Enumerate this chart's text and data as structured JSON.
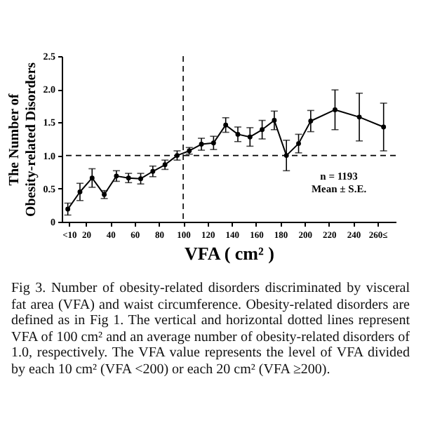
{
  "chart_data": {
    "type": "line",
    "xlabel": "VFA ( cm² )",
    "ylabel": "The Number of\nObesity-related Disorders",
    "x": [
      5,
      15,
      25,
      35,
      45,
      55,
      65,
      75,
      85,
      95,
      105,
      115,
      125,
      135,
      145,
      155,
      165,
      175,
      185,
      195,
      205,
      225,
      245,
      265
    ],
    "series": [
      {
        "color": "#000000",
        "values": [
          0.19,
          0.45,
          0.66,
          0.41,
          0.69,
          0.66,
          0.65,
          0.76,
          0.86,
          1.0,
          1.07,
          1.17,
          1.19,
          1.46,
          1.32,
          1.28,
          1.39,
          1.53,
          1.0,
          1.18,
          1.52,
          1.69,
          1.58,
          1.43
        ],
        "errors": [
          0.09,
          0.13,
          0.14,
          0.06,
          0.08,
          0.07,
          0.08,
          0.08,
          0.07,
          0.07,
          0.05,
          0.09,
          0.1,
          0.11,
          0.11,
          0.14,
          0.14,
          0.14,
          0.23,
          0.14,
          0.16,
          0.3,
          0.36,
          0.36
        ]
      }
    ],
    "xlim": [
      0,
      275
    ],
    "xticks": [
      {
        "value": 6,
        "label": "<10"
      },
      20,
      40,
      60,
      80,
      100,
      120,
      140,
      160,
      180,
      200,
      220,
      240,
      {
        "value": 260,
        "label": "260≤"
      }
    ],
    "ylim": [
      0,
      2.5
    ],
    "yticks": [
      0,
      0.5,
      {
        "value": 1,
        "label": "1.0"
      },
      1.5,
      {
        "value": 2,
        "label": "2.0"
      },
      2.5
    ],
    "ref_lines": [
      {
        "axis": "x",
        "value": 100,
        "line_style": "dashed"
      },
      {
        "axis": "y",
        "value": 1,
        "line_style": "dashed"
      }
    ],
    "marker": "circle",
    "grid": false,
    "annotations": [
      "n = 1193",
      "Mean ± S.E.",
      "Fig 3.  Number of obesity-related disorders discriminated by visceral fat area (VFA) and waist circumference. Obesity-related disorders are defined as in Fig 1. The vertical and horizontal dotted lines represent VFA of 100 cm² and an average number of obesity-related disorders of 1.0, respectively. The VFA value represents the level of VFA divided by each 10 cm² (VFA <200) or each 20 cm² (VFA ≥200)."
    ]
  }
}
